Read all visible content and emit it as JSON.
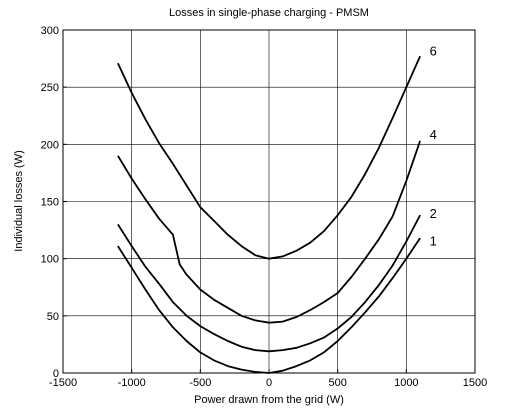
{
  "chart_data": {
    "type": "line",
    "title": "Losses in single-phase charging - PMSM",
    "xlabel": "Power drawn from the grid (W)",
    "ylabel": "Individual losses (W)",
    "xlim": [
      -1500,
      1500
    ],
    "ylim": [
      0,
      300
    ],
    "xticks": [
      -1500,
      -1000,
      -500,
      0,
      500,
      1000,
      1500
    ],
    "yticks": [
      0,
      50,
      100,
      150,
      200,
      250,
      300
    ],
    "grid": true,
    "legend": "none",
    "series": [
      {
        "name": "6",
        "x": [
          -1100,
          -1000,
          -900,
          -800,
          -700,
          -600,
          -500,
          -400,
          -300,
          -200,
          -100,
          0,
          100,
          200,
          300,
          400,
          500,
          600,
          700,
          800,
          900,
          1000,
          1100
        ],
        "y": [
          271,
          245,
          222,
          201,
          183,
          164,
          145,
          133,
          121,
          111,
          103,
          100,
          102,
          107,
          114,
          124,
          138,
          154,
          174,
          197,
          223,
          250,
          277
        ]
      },
      {
        "name": "4",
        "x": [
          -1100,
          -1000,
          -900,
          -800,
          -750,
          -700,
          -650,
          -600,
          -500,
          -400,
          -300,
          -200,
          -100,
          0,
          100,
          200,
          300,
          400,
          500,
          600,
          700,
          800,
          900,
          1000,
          1100
        ],
        "y": [
          190,
          170,
          152,
          135,
          128,
          121,
          95,
          86,
          73,
          64,
          57,
          50,
          46,
          44,
          45,
          49,
          55,
          62,
          70,
          84,
          100,
          117,
          137,
          168,
          203
        ]
      },
      {
        "name": "2",
        "x": [
          -1100,
          -1000,
          -900,
          -800,
          -700,
          -600,
          -500,
          -400,
          -300,
          -200,
          -100,
          0,
          100,
          200,
          300,
          400,
          500,
          600,
          700,
          800,
          900,
          1000,
          1100
        ],
        "y": [
          130,
          111,
          93,
          78,
          62,
          50,
          41,
          34,
          28,
          23,
          20,
          19,
          20,
          22,
          26,
          31,
          39,
          49,
          62,
          77,
          94,
          115,
          138
        ]
      },
      {
        "name": "1",
        "x": [
          -1100,
          -1000,
          -900,
          -800,
          -700,
          -600,
          -500,
          -400,
          -300,
          -200,
          -100,
          0,
          100,
          200,
          300,
          400,
          500,
          600,
          700,
          800,
          900,
          1000,
          1100
        ],
        "y": [
          111,
          92,
          73,
          55,
          40,
          28,
          18,
          11,
          6,
          3,
          1,
          0,
          2,
          6,
          11,
          18,
          28,
          40,
          53,
          67,
          83,
          100,
          118
        ]
      }
    ],
    "series_labels": [
      {
        "text": "6",
        "x": 1170,
        "y": 281
      },
      {
        "text": "4",
        "x": 1170,
        "y": 208
      },
      {
        "text": "2",
        "x": 1170,
        "y": 139
      },
      {
        "text": "1",
        "x": 1170,
        "y": 115
      }
    ]
  }
}
